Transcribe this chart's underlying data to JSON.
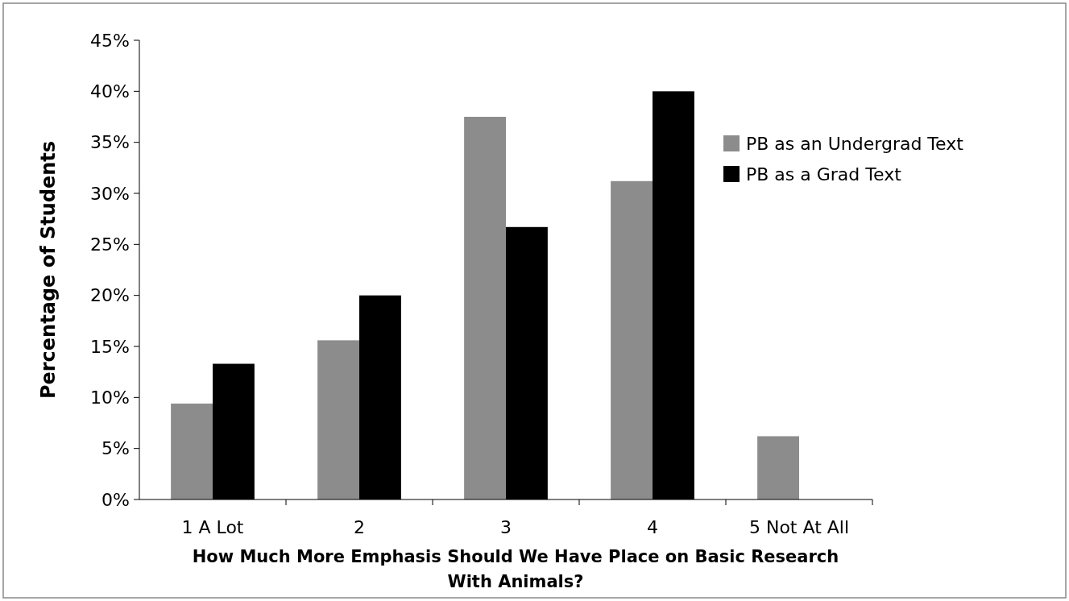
{
  "chart_data": {
    "type": "bar",
    "xlabel": "How Much More Emphasis Should We Have Place on Basic Research\nWith Animals?",
    "ylabel": "Percentage of Students",
    "categories": [
      "1 A Lot",
      "2",
      "3",
      "4",
      "5 Not At All"
    ],
    "series": [
      {
        "name": "PB as an Undergrad Text",
        "color": "#8c8c8c",
        "values": [
          9.4,
          15.6,
          37.5,
          31.2,
          6.2
        ]
      },
      {
        "name": "PB as a Grad Text",
        "color": "#000000",
        "values": [
          13.3,
          20,
          26.7,
          40,
          0
        ]
      }
    ],
    "ylim": [
      0,
      45
    ],
    "yticks": [
      {
        "value": 0,
        "label": "0%"
      },
      {
        "value": 5,
        "label": "5%"
      },
      {
        "value": 10,
        "label": "10%"
      },
      {
        "value": 15,
        "label": "15%"
      },
      {
        "value": 20,
        "label": "20%"
      },
      {
        "value": 25,
        "label": "25%"
      },
      {
        "value": 30,
        "label": "30%"
      },
      {
        "value": 35,
        "label": "35%"
      },
      {
        "value": 40,
        "label": "40%"
      },
      {
        "value": 45,
        "label": "45%"
      }
    ],
    "grid": false,
    "legend": "right"
  }
}
